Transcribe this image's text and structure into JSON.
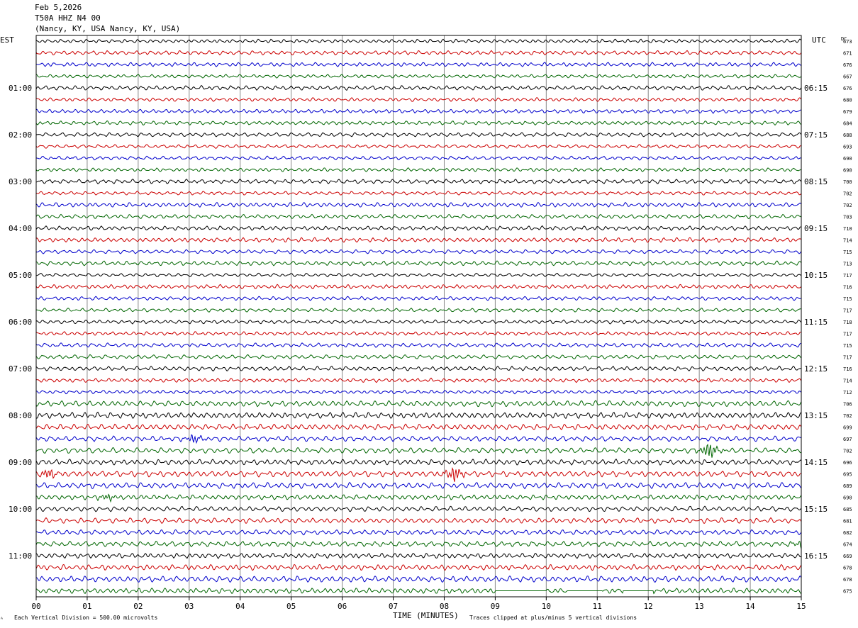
{
  "header": {
    "date": "Feb 5,2026",
    "station": "T50A HHZ N4 00",
    "location": "(Nancy, KY, USA Nancy, KY, USA)"
  },
  "left_tz": "EST",
  "right_tz": "UTC",
  "dc_label": "DC",
  "footer": {
    "xlabel": "TIME (MINUTES)",
    "scale_note": "Each Vertical Division =  500.00 microvolts",
    "clip_note": "Traces clipped at plus/minus 5 vertical divisions",
    "corner_mark": "ᴬ"
  },
  "colors": {
    "trace_cycle": [
      "#000000",
      "#cc0000",
      "#0000cc",
      "#006600"
    ],
    "grid": "#888888",
    "frame": "#000000"
  },
  "chart_data": {
    "type": "line",
    "title": "",
    "xlabel": "TIME (MINUTES)",
    "ylabel": "",
    "xlim": [
      0,
      15
    ],
    "x_ticks": [
      "00",
      "01",
      "02",
      "03",
      "04",
      "05",
      "06",
      "07",
      "08",
      "09",
      "10",
      "11",
      "12",
      "13",
      "14",
      "15"
    ],
    "grid": true,
    "left_hour_labels": [
      "01:00",
      "02:00",
      "03:00",
      "04:00",
      "05:00",
      "06:00",
      "07:00",
      "08:00",
      "09:00",
      "10:00",
      "11:00"
    ],
    "right_hour_labels": [
      "06:15",
      "07:15",
      "08:15",
      "09:15",
      "10:15",
      "11:15",
      "12:15",
      "13:15",
      "14:15",
      "15:15",
      "16:15"
    ],
    "trace_count": 48,
    "dc_offsets": [
      673,
      671,
      676,
      667,
      676,
      680,
      679,
      684,
      688,
      693,
      690,
      690,
      700,
      702,
      702,
      703,
      710,
      714,
      715,
      713,
      717,
      716,
      715,
      717,
      718,
      717,
      715,
      717,
      716,
      714,
      712,
      706,
      702,
      699,
      697,
      702,
      696,
      695,
      689,
      690,
      685,
      681,
      682,
      674,
      669,
      678,
      678,
      675
    ],
    "events": [
      {
        "trace": 34,
        "minute": 3.1,
        "amplitude": 1.8
      },
      {
        "trace": 35,
        "minute": 13.2,
        "amplitude": 3.5
      },
      {
        "trace": 37,
        "minute": 0.25,
        "amplitude": 2.0
      },
      {
        "trace": 37,
        "minute": 8.2,
        "amplitude": 3.2
      },
      {
        "trace": 39,
        "minute": 1.4,
        "amplitude": 1.4
      },
      {
        "trace": 43,
        "minute": 15.0,
        "amplitude": 1.6
      }
    ],
    "flat_segments": [
      {
        "trace": 47,
        "from_minute": 9.0,
        "to_minute": 10.0
      },
      {
        "trace": 47,
        "from_minute": 10.4,
        "to_minute": 11.1
      },
      {
        "trace": 47,
        "from_minute": 11.5,
        "to_minute": 12.1
      }
    ]
  }
}
